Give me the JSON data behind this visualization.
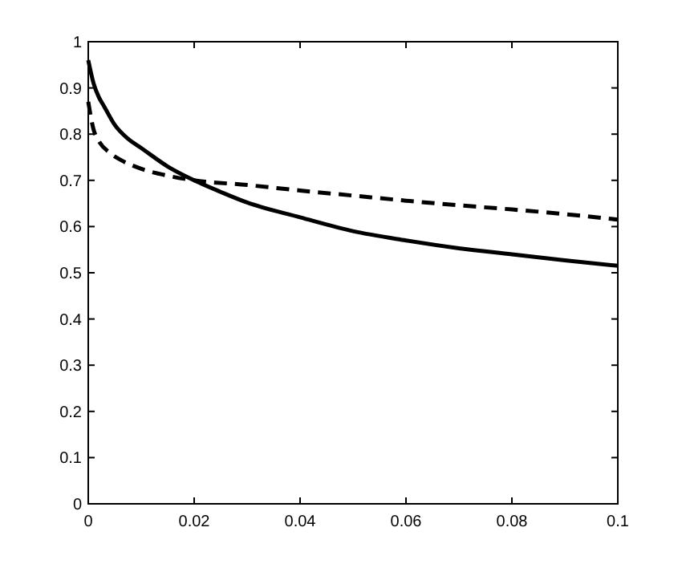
{
  "chart_data": {
    "type": "line",
    "xlim": [
      0,
      0.1
    ],
    "ylim": [
      0,
      1
    ],
    "xticks": [
      0,
      0.02,
      0.04,
      0.06,
      0.08,
      0.1
    ],
    "yticks": [
      0,
      0.1,
      0.2,
      0.3,
      0.4,
      0.5,
      0.6,
      0.7,
      0.8,
      0.9,
      1
    ],
    "grid": false,
    "series": [
      {
        "color": "#000000",
        "line_style": "solid",
        "x": [
          0,
          0.001,
          0.002,
          0.003,
          0.005,
          0.0075,
          0.01,
          0.015,
          0.02,
          0.025,
          0.03,
          0.04,
          0.05,
          0.06,
          0.07,
          0.08,
          0.09,
          0.1
        ],
        "values": [
          0.96,
          0.91,
          0.88,
          0.86,
          0.82,
          0.79,
          0.77,
          0.73,
          0.7,
          0.675,
          0.652,
          0.62,
          0.59,
          0.57,
          0.553,
          0.54,
          0.527,
          0.515
        ]
      },
      {
        "color": "#000000",
        "line_style": "dashed",
        "x": [
          0,
          0.001,
          0.002,
          0.004,
          0.006,
          0.01,
          0.015,
          0.02,
          0.03,
          0.04,
          0.05,
          0.06,
          0.07,
          0.08,
          0.09,
          0.1
        ],
        "values": [
          0.87,
          0.81,
          0.785,
          0.76,
          0.745,
          0.725,
          0.71,
          0.7,
          0.69,
          0.678,
          0.667,
          0.656,
          0.646,
          0.637,
          0.627,
          0.615
        ]
      }
    ]
  }
}
